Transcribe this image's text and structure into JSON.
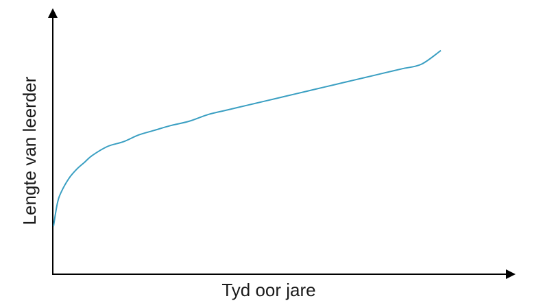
{
  "chart_data": {
    "type": "line",
    "title": "",
    "xlabel": "Tyd oor jare",
    "ylabel": "Lengte van leerder",
    "grid": false,
    "legend": "none",
    "tick_labels_shown": false,
    "line_color": "#3a9fc2",
    "axis_color": "#000000",
    "xlim": [
      0,
      100
    ],
    "ylim": [
      0,
      100
    ],
    "series": [
      {
        "x": [
          0,
          1,
          2,
          4,
          6,
          8,
          10,
          14,
          18,
          22,
          26,
          30,
          35,
          40,
          45,
          50,
          55,
          60,
          65,
          70,
          75,
          80,
          85,
          90,
          95,
          100
        ],
        "values": [
          21,
          31,
          36,
          42,
          46,
          49,
          52,
          56,
          58,
          61,
          63,
          65,
          67,
          70,
          72,
          74,
          76,
          78,
          80,
          82,
          84,
          86,
          88,
          90,
          92,
          98
        ]
      }
    ]
  }
}
